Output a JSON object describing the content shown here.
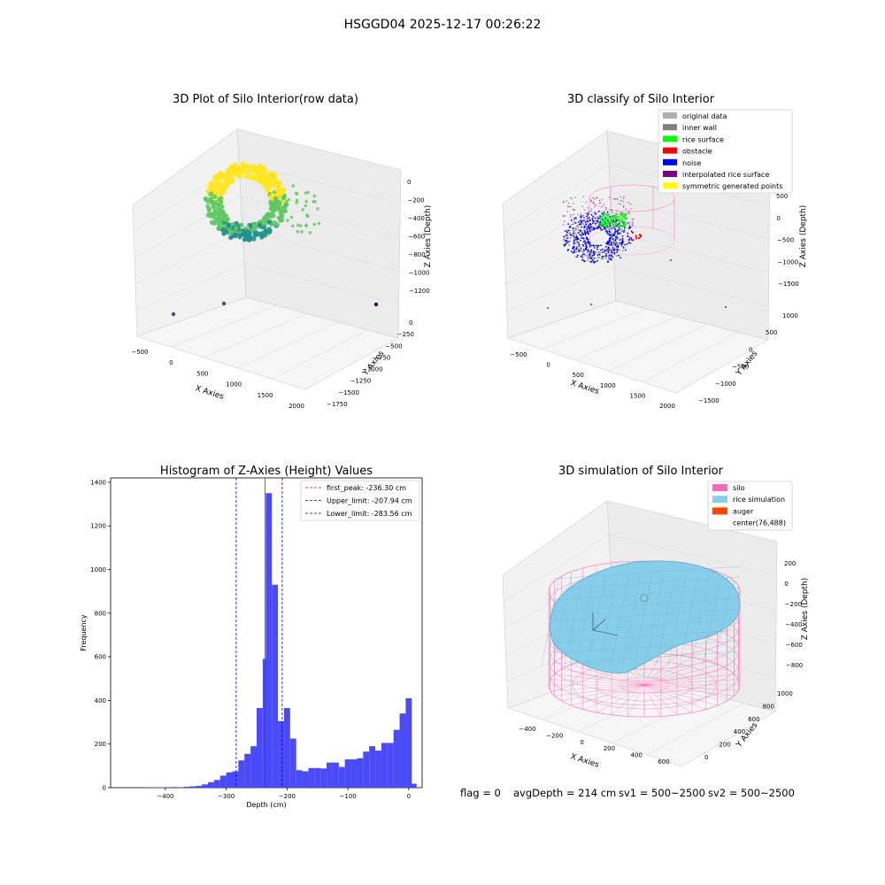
{
  "suptitle": "HSGGD04 2025-12-17 00:26:22",
  "footer": {
    "flag": "flag = 0",
    "avg_depth": "avgDepth = 214 cm",
    "sv1": "sv1 = 500~2500",
    "sv2": "sv2 = 500~2500"
  },
  "chart_data": [
    {
      "id": "raw",
      "type": "scatter3d",
      "title": "3D Plot of Silo Interior(row data)",
      "xlabel": "X Axies",
      "ylabel": "Y Axies",
      "zlabel": "Z Axies (Depth)",
      "x_ticks": [
        "−500",
        "0",
        "500",
        "1000",
        "1500",
        "2000"
      ],
      "y_ticks": [
        "0",
        "−250",
        "−500",
        "−750",
        "−1000",
        "−1250",
        "−1500",
        "−1750"
      ],
      "z_ticks": [
        "0",
        "−200",
        "−400",
        "−600",
        "−800",
        "−1000",
        "−1200"
      ],
      "colormap": [
        "#440154",
        "#3b528b",
        "#21918c",
        "#5ec962",
        "#fde725"
      ]
    },
    {
      "id": "classify",
      "type": "scatter3d",
      "title": "3D classify of Silo Interior",
      "xlabel": "X Axies",
      "ylabel": "Y Axies",
      "zlabel": "Z Axies (Depth)",
      "x_ticks": [
        "−500",
        "0",
        "500",
        "1000",
        "1500",
        "2000"
      ],
      "y_ticks": [
        "1000",
        "500",
        "0",
        "−500",
        "−1000",
        "−1500"
      ],
      "z_ticks": [
        "500",
        "0",
        "−500",
        "−1000",
        "−1500"
      ],
      "legend": [
        {
          "label": "original data",
          "color": "#b0b0b0"
        },
        {
          "label": "inner wall",
          "color": "#808080"
        },
        {
          "label": "rice surface",
          "color": "#00ff00"
        },
        {
          "label": "obstacle",
          "color": "#ff0000"
        },
        {
          "label": "noise",
          "color": "#0000ff"
        },
        {
          "label": "interpolated rice surface",
          "color": "#800080"
        },
        {
          "label": "symmetric generated points",
          "color": "#ffff00"
        }
      ],
      "legend_position": "top-right"
    },
    {
      "id": "hist",
      "type": "bar",
      "title": "Histogram of Z-Axies (Height) Values",
      "xlabel": "Depth (cm)",
      "ylabel": "Frequency",
      "xlim": [
        -490,
        22
      ],
      "ylim": [
        0,
        1420
      ],
      "x_ticks": [
        -400,
        -300,
        -200,
        -100,
        0
      ],
      "y_ticks": [
        0,
        200,
        400,
        600,
        800,
        1000,
        1200,
        1400
      ],
      "bin_width": 10,
      "bins": [
        {
          "x0": -430,
          "v": 2
        },
        {
          "x0": -420,
          "v": 1
        },
        {
          "x0": -410,
          "v": 2
        },
        {
          "x0": -400,
          "v": 1
        },
        {
          "x0": -390,
          "v": 3
        },
        {
          "x0": -380,
          "v": 2
        },
        {
          "x0": -370,
          "v": 4
        },
        {
          "x0": -360,
          "v": 6
        },
        {
          "x0": -350,
          "v": 8
        },
        {
          "x0": -340,
          "v": 15
        },
        {
          "x0": -330,
          "v": 25
        },
        {
          "x0": -320,
          "v": 35
        },
        {
          "x0": -310,
          "v": 55
        },
        {
          "x0": -300,
          "v": 70
        },
        {
          "x0": -290,
          "v": 75
        },
        {
          "x0": -280,
          "v": 125
        },
        {
          "x0": -270,
          "v": 155
        },
        {
          "x0": -260,
          "v": 190
        },
        {
          "x0": -250,
          "v": 365
        },
        {
          "x0": -240,
          "v": 590
        },
        {
          "x0": -235,
          "v": 1350
        },
        {
          "x0": -225,
          "v": 930
        },
        {
          "x0": -215,
          "v": 305
        },
        {
          "x0": -205,
          "v": 365
        },
        {
          "x0": -195,
          "v": 225
        },
        {
          "x0": -185,
          "v": 80
        },
        {
          "x0": -175,
          "v": 75
        },
        {
          "x0": -165,
          "v": 90
        },
        {
          "x0": -155,
          "v": 90
        },
        {
          "x0": -145,
          "v": 88
        },
        {
          "x0": -135,
          "v": 115
        },
        {
          "x0": -125,
          "v": 115
        },
        {
          "x0": -115,
          "v": 95
        },
        {
          "x0": -105,
          "v": 130
        },
        {
          "x0": -95,
          "v": 130
        },
        {
          "x0": -85,
          "v": 135
        },
        {
          "x0": -75,
          "v": 165
        },
        {
          "x0": -65,
          "v": 190
        },
        {
          "x0": -55,
          "v": 170
        },
        {
          "x0": -45,
          "v": 205
        },
        {
          "x0": -35,
          "v": 205
        },
        {
          "x0": -25,
          "v": 265
        },
        {
          "x0": -15,
          "v": 340
        },
        {
          "x0": -5,
          "v": 410
        },
        {
          "x0": 3,
          "v": 18
        }
      ],
      "bar_color": "#4a4af7",
      "lines": [
        {
          "label": "first_peak: -236.30 cm",
          "x": -236.3,
          "color": "#ff0000"
        },
        {
          "label": "Upper_limit: -207.94 cm",
          "x": -207.94,
          "color": "#0000cc"
        },
        {
          "label": "Lower_limit: -283.56 cm",
          "x": -283.56,
          "color": "#0000cc"
        }
      ],
      "legend_position": "top-right"
    },
    {
      "id": "sim",
      "type": "surface3d",
      "title": "3D simulation of Silo Interior",
      "xlabel": "X Axies",
      "ylabel": "Y Axies",
      "zlabel": "Z Axies (Depth)",
      "x_ticks": [
        "−400",
        "−200",
        "0",
        "200",
        "400",
        "600"
      ],
      "y_ticks": [
        "0",
        "200",
        "400",
        "600",
        "800",
        "1000"
      ],
      "z_ticks": [
        "200",
        "0",
        "−200",
        "−400",
        "−600",
        "−800"
      ],
      "legend": [
        {
          "label": "silo",
          "color": "#ff69b4"
        },
        {
          "label": "rice simulation",
          "color": "#87ceeb"
        },
        {
          "label": "auger",
          "color": "#ff4500"
        },
        {
          "label": "center(76,488)",
          "color": "none"
        }
      ],
      "legend_position": "top-right"
    }
  ]
}
